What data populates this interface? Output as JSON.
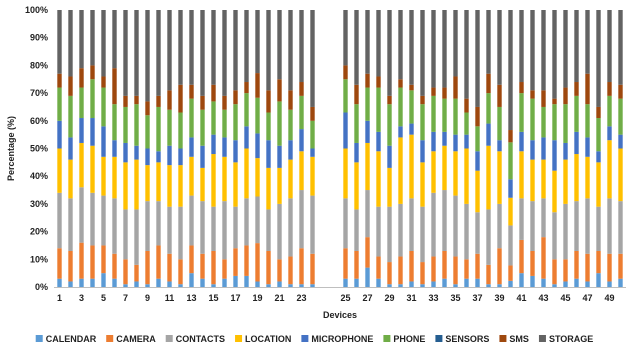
{
  "chart_data": {
    "type": "bar",
    "stacked": true,
    "xlabel": "Devices",
    "ylabel": "Percentage (%)",
    "ylim": [
      0,
      100
    ],
    "y_ticks": [
      0,
      10,
      20,
      30,
      40,
      50,
      60,
      70,
      80,
      90,
      100
    ],
    "y_tick_suffix": "%",
    "x_tick_labels": [
      "1",
      "3",
      "5",
      "7",
      "9",
      "11",
      "13",
      "15",
      "17",
      "19",
      "21",
      "23",
      "25",
      "27",
      "29",
      "31",
      "33",
      "35",
      "37",
      "39",
      "41",
      "43",
      "45",
      "47",
      "49"
    ],
    "grid": false,
    "legend_position": "bottom",
    "colors": [
      "#5b9bd5",
      "#ed7d31",
      "#a5a5a5",
      "#ffc000",
      "#4472c4",
      "#70ad47",
      "#255e91",
      "#9e480e",
      "#636363"
    ],
    "categories": [
      "1",
      "2",
      "3",
      "4",
      "5",
      "6",
      "7",
      "8",
      "9",
      "10",
      "11",
      "12",
      "13",
      "14",
      "15",
      "16",
      "17",
      "18",
      "19",
      "20",
      "21",
      "22",
      "23",
      "24",
      "25",
      "26",
      "27",
      "28",
      "29",
      "30",
      "31",
      "32",
      "33",
      "34",
      "35",
      "36",
      "37",
      "38",
      "39",
      "40",
      "41",
      "42",
      "43",
      "44",
      "45",
      "46",
      "47",
      "48",
      "49",
      "50"
    ],
    "series": [
      {
        "name": "CALENDAR",
        "values": [
          3,
          2,
          3,
          3,
          5,
          3,
          1,
          2,
          1,
          3,
          2,
          1,
          5,
          3,
          1,
          3,
          4,
          4,
          2,
          1,
          2,
          1,
          1,
          1,
          3,
          3,
          7,
          3,
          1,
          1,
          2,
          1,
          2,
          3,
          1,
          3,
          3,
          1,
          1,
          2,
          5,
          4,
          3,
          1,
          2,
          3,
          2,
          5,
          2,
          3
        ]
      },
      {
        "name": "CAMERA",
        "values": [
          11,
          11,
          13,
          12,
          10,
          9,
          9,
          6,
          12,
          12,
          10,
          9,
          10,
          9,
          12,
          7,
          10,
          11,
          14,
          12,
          8,
          10,
          13,
          11,
          11,
          10,
          11,
          8,
          8,
          10,
          11,
          8,
          9,
          10,
          10,
          7,
          9,
          7,
          13,
          5,
          12,
          9,
          15,
          9,
          8,
          10,
          10,
          8,
          10,
          9
        ]
      },
      {
        "name": "CONTACTS",
        "values": [
          20,
          19,
          20,
          19,
          18,
          20,
          18,
          20,
          18,
          16,
          17,
          19,
          18,
          19,
          16,
          21,
          15,
          17,
          17,
          15,
          20,
          21,
          21,
          21,
          18,
          15,
          17,
          18,
          20,
          19,
          19,
          20,
          23,
          22,
          22,
          20,
          15,
          20,
          16,
          13,
          15,
          18,
          14,
          17,
          20,
          18,
          20,
          16,
          20,
          19
        ]
      },
      {
        "name": "LOCATION",
        "values": [
          16,
          14,
          16,
          17,
          14,
          15,
          17,
          18,
          13,
          14,
          15,
          15,
          14,
          12,
          19,
          16,
          16,
          18,
          14,
          15,
          13,
          14,
          14,
          14,
          18,
          17,
          17,
          20,
          14,
          24,
          23,
          16,
          15,
          16,
          16,
          20,
          15,
          23,
          19,
          9,
          17,
          15,
          14,
          15,
          16,
          17,
          15,
          16,
          21,
          19
        ]
      },
      {
        "name": "MICROPHONE",
        "values": [
          10,
          8,
          9,
          10,
          11,
          6,
          7,
          5,
          6,
          4,
          7,
          6,
          7,
          8,
          7,
          7,
          8,
          8,
          9,
          10,
          8,
          7,
          8,
          3,
          13,
          7,
          8,
          7,
          8,
          4,
          4,
          8,
          7,
          5,
          6,
          5,
          7,
          8,
          4,
          6,
          7,
          7,
          8,
          11,
          6,
          8,
          7,
          4,
          5,
          5
        ]
      },
      {
        "name": "PHONE",
        "values": [
          12,
          15,
          11,
          14,
          14,
          13,
          13,
          15,
          12,
          16,
          13,
          13,
          14,
          13,
          12,
          10,
          13,
          12,
          13,
          10,
          16,
          11,
          12,
          10,
          12,
          14,
          12,
          16,
          15,
          14,
          12,
          13,
          13,
          12,
          13,
          8,
          9,
          11,
          12,
          12,
          14,
          15,
          11,
          13,
          14,
          13,
          12,
          12,
          11,
          13
        ]
      },
      {
        "name": "SENSORS",
        "values": [
          0,
          0,
          0,
          0,
          0,
          0,
          0,
          0,
          0,
          0,
          0,
          0,
          0,
          0,
          0,
          0,
          0,
          0,
          0,
          0,
          0,
          0,
          0,
          0,
          0,
          0,
          0,
          0,
          0,
          0,
          0,
          0,
          0,
          0,
          0,
          0,
          0,
          0,
          0,
          0,
          0,
          0,
          0,
          0,
          0,
          0,
          0,
          0,
          0,
          0
        ]
      },
      {
        "name": "SMS",
        "values": [
          5,
          7,
          7,
          5,
          4,
          13,
          4,
          3,
          5,
          4,
          7,
          10,
          5,
          5,
          6,
          5,
          5,
          4,
          9,
          8,
          8,
          7,
          5,
          5,
          5,
          7,
          5,
          4,
          3,
          3,
          2,
          3,
          3,
          4,
          8,
          5,
          7,
          7,
          8,
          4,
          4,
          3,
          6,
          2,
          6,
          5,
          11,
          4,
          5,
          5
        ]
      },
      {
        "name": "STORAGE",
        "values": [
          23,
          24,
          21,
          20,
          24,
          21,
          31,
          31,
          33,
          31,
          29,
          27,
          27,
          31,
          27,
          31,
          29,
          26,
          23,
          29,
          25,
          29,
          26,
          35,
          20,
          27,
          23,
          24,
          31,
          25,
          27,
          31,
          28,
          28,
          24,
          32,
          35,
          23,
          27,
          39,
          26,
          29,
          29,
          32,
          28,
          26,
          23,
          35,
          26,
          27
        ]
      }
    ]
  }
}
